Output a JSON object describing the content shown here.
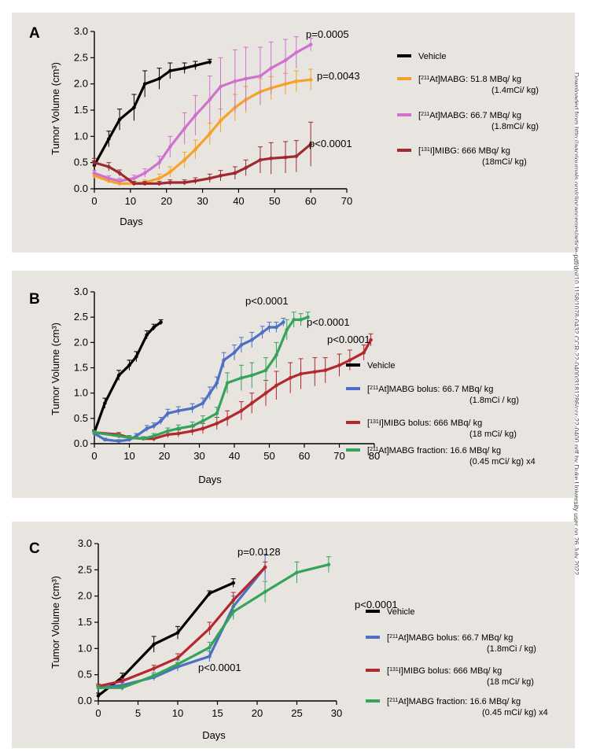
{
  "side_note": "Downloaded from http://aacrjournals.org/clincancerres/article-pdf/doi/10.1158/1078-0432.CCR-22-0400/3181286/ccr-22-0400.pdf by Duke University user on 26 July 2022",
  "colors": {
    "vehicle": "#000000",
    "at_51": "#f5a328",
    "at_66": "#cf72cc",
    "mibg": "#9e2a2f",
    "at_bolus": "#4d6fc4",
    "mibg_bolus": "#b3272d",
    "at_fraction": "#35a35a"
  },
  "chart_data": [
    {
      "panel": "A",
      "type": "line",
      "xlabel": "Days",
      "ylabel": "Tumor Volume (cm³)",
      "xlim": [
        0,
        70
      ],
      "ylim": [
        0,
        3.0
      ],
      "xticks": [
        "0",
        "10",
        "20",
        "30",
        "40",
        "50",
        "60",
        "70"
      ],
      "yticks": [
        "0.0",
        "0.5",
        "1.0",
        "1.5",
        "2.0",
        "2.5",
        "3.0"
      ],
      "series": [
        {
          "name": "Vehicle",
          "color": "#000000",
          "x": [
            0,
            4,
            7,
            11,
            14,
            18,
            21,
            25,
            28,
            32
          ],
          "y": [
            0.45,
            0.95,
            1.32,
            1.55,
            2.0,
            2.1,
            2.25,
            2.3,
            2.35,
            2.42
          ],
          "err": [
            0.08,
            0.15,
            0.2,
            0.25,
            0.25,
            0.2,
            0.15,
            0.1,
            0.08,
            0.05
          ]
        },
        {
          "name": "[²¹¹At]MABG: 51.8 MBq/ kg (1.4mCi/ kg)",
          "color": "#f5a328",
          "x": [
            0,
            4,
            7,
            11,
            14,
            18,
            21,
            25,
            28,
            32,
            35,
            39,
            42,
            46,
            49,
            53,
            56,
            60
          ],
          "y": [
            0.25,
            0.15,
            0.1,
            0.1,
            0.12,
            0.2,
            0.32,
            0.55,
            0.75,
            1.05,
            1.3,
            1.55,
            1.7,
            1.85,
            1.92,
            2.0,
            2.05,
            2.08
          ],
          "err": [
            0.05,
            0.04,
            0.04,
            0.04,
            0.05,
            0.08,
            0.1,
            0.15,
            0.18,
            0.2,
            0.22,
            0.25,
            0.25,
            0.25,
            0.22,
            0.2,
            0.2,
            0.2
          ]
        },
        {
          "name": "[²¹¹At]MABG: 66.7 MBq/ kg (1.8mCi/ kg)",
          "color": "#cf72cc",
          "x": [
            0,
            4,
            7,
            11,
            14,
            18,
            21,
            25,
            28,
            32,
            35,
            39,
            42,
            46,
            49,
            53,
            56,
            60
          ],
          "y": [
            0.3,
            0.2,
            0.15,
            0.2,
            0.3,
            0.5,
            0.8,
            1.15,
            1.4,
            1.7,
            1.95,
            2.05,
            2.1,
            2.15,
            2.3,
            2.45,
            2.6,
            2.75
          ],
          "err": [
            0.05,
            0.05,
            0.05,
            0.06,
            0.08,
            0.12,
            0.2,
            0.3,
            0.38,
            0.45,
            0.55,
            0.6,
            0.6,
            0.55,
            0.5,
            0.4,
            0.3,
            0.12
          ]
        },
        {
          "name": "[¹³¹I]MIBG: 666 MBq/ kg (18mCi/ kg)",
          "color": "#9e2a2f",
          "x": [
            0,
            4,
            7,
            11,
            14,
            18,
            21,
            25,
            28,
            32,
            35,
            39,
            42,
            46,
            49,
            53,
            56,
            60
          ],
          "y": [
            0.5,
            0.42,
            0.3,
            0.1,
            0.1,
            0.1,
            0.12,
            0.12,
            0.15,
            0.2,
            0.25,
            0.3,
            0.4,
            0.55,
            0.58,
            0.6,
            0.62,
            0.85
          ],
          "err": [
            0.08,
            0.08,
            0.06,
            0.04,
            0.04,
            0.04,
            0.05,
            0.05,
            0.06,
            0.08,
            0.1,
            0.12,
            0.15,
            0.25,
            0.3,
            0.3,
            0.3,
            0.42
          ]
        }
      ],
      "annotations": [
        "p=0.0005",
        "p=0.0043",
        "p<0.0001"
      ]
    },
    {
      "panel": "B",
      "type": "line",
      "xlabel": "Days",
      "ylabel": "Tumor Volume (cm³)",
      "xlim": [
        0,
        80
      ],
      "ylim": [
        0,
        3.0
      ],
      "xticks": [
        "0",
        "10",
        "20",
        "30",
        "40",
        "50",
        "60",
        "70",
        "80"
      ],
      "yticks": [
        "0.0",
        "0.5",
        "1.0",
        "1.5",
        "2.0",
        "2.5",
        "3.0"
      ],
      "series": [
        {
          "name": "Vehicle",
          "color": "#000000",
          "x": [
            0,
            3,
            7,
            10,
            12,
            15,
            17,
            19
          ],
          "y": [
            0.22,
            0.8,
            1.35,
            1.55,
            1.72,
            2.15,
            2.3,
            2.4
          ],
          "err": [
            0.05,
            0.1,
            0.1,
            0.1,
            0.1,
            0.08,
            0.06,
            0.05
          ]
        },
        {
          "name": "[²¹¹At]MABG bolus: 66.7 MBq/ kg (1.8mCi / kg)",
          "color": "#4d6fc4",
          "x": [
            0,
            3,
            7,
            10,
            12,
            15,
            17,
            19,
            21,
            24,
            28,
            31,
            33,
            35,
            37,
            40,
            42,
            45,
            48,
            50,
            52,
            54
          ],
          "y": [
            0.2,
            0.08,
            0.05,
            0.08,
            0.15,
            0.3,
            0.35,
            0.45,
            0.6,
            0.65,
            0.7,
            0.8,
            1.0,
            1.2,
            1.65,
            1.8,
            1.95,
            2.05,
            2.2,
            2.3,
            2.3,
            2.4
          ],
          "err": [
            0.04,
            0.03,
            0.03,
            0.04,
            0.05,
            0.06,
            0.06,
            0.07,
            0.08,
            0.08,
            0.09,
            0.1,
            0.12,
            0.12,
            0.15,
            0.15,
            0.15,
            0.15,
            0.12,
            0.1,
            0.1,
            0.08
          ]
        },
        {
          "name": "[¹³¹I]MIBG bolus: 666 MBq/ kg (18 mCi/ kg)",
          "color": "#b3272d",
          "x": [
            0,
            7,
            10,
            14,
            17,
            21,
            24,
            28,
            31,
            35,
            38,
            42,
            45,
            49,
            52,
            56,
            59,
            63,
            66,
            70,
            73,
            77,
            79
          ],
          "y": [
            0.22,
            0.18,
            0.12,
            0.1,
            0.1,
            0.18,
            0.2,
            0.25,
            0.3,
            0.4,
            0.5,
            0.65,
            0.8,
            1.0,
            1.15,
            1.3,
            1.38,
            1.42,
            1.45,
            1.55,
            1.65,
            1.8,
            2.05
          ],
          "err": [
            0.04,
            0.04,
            0.04,
            0.04,
            0.05,
            0.06,
            0.07,
            0.08,
            0.1,
            0.12,
            0.15,
            0.18,
            0.2,
            0.25,
            0.28,
            0.3,
            0.3,
            0.28,
            0.25,
            0.22,
            0.2,
            0.15,
            0.12
          ]
        },
        {
          "name": "[²¹¹At]MABG fraction: 16.6 MBq/ kg (0.45 mCi/ kg) x4",
          "color": "#35a35a",
          "x": [
            0,
            7,
            10,
            14,
            17,
            21,
            24,
            28,
            31,
            35,
            38,
            42,
            45,
            49,
            52,
            55,
            57,
            59,
            61
          ],
          "y": [
            0.22,
            0.15,
            0.12,
            0.1,
            0.15,
            0.25,
            0.3,
            0.35,
            0.45,
            0.6,
            1.2,
            1.3,
            1.35,
            1.45,
            1.75,
            2.25,
            2.45,
            2.45,
            2.5
          ],
          "err": [
            0.04,
            0.04,
            0.04,
            0.04,
            0.05,
            0.06,
            0.07,
            0.08,
            0.1,
            0.12,
            0.2,
            0.25,
            0.25,
            0.25,
            0.25,
            0.2,
            0.15,
            0.12,
            0.1
          ]
        }
      ],
      "annotations": [
        "p<0.0001",
        "p<0.0001",
        "p<0.0001"
      ]
    },
    {
      "panel": "C",
      "type": "line",
      "xlabel": "Days",
      "ylabel": "Tumor Volume (cm³)",
      "xlim": [
        0,
        30
      ],
      "ylim": [
        0,
        3.0
      ],
      "xticks": [
        "0",
        "5",
        "10",
        "15",
        "20",
        "25",
        "30"
      ],
      "yticks": [
        "0.0",
        "0.5",
        "1.0",
        "1.5",
        "2.0",
        "2.5",
        "3.0"
      ],
      "series": [
        {
          "name": "Vehicle",
          "color": "#000000",
          "x": [
            0,
            3,
            7,
            10,
            14,
            17
          ],
          "y": [
            0.1,
            0.45,
            1.08,
            1.3,
            2.05,
            2.25
          ],
          "err": [
            0.05,
            0.08,
            0.15,
            0.12,
            0.05,
            0.08
          ]
        },
        {
          "name": "[²¹¹At]MABG bolus: 66.7 MBq/ kg (1.8mCi / kg)",
          "color": "#4d6fc4",
          "x": [
            0,
            3,
            7,
            10,
            14,
            17,
            21
          ],
          "y": [
            0.25,
            0.3,
            0.45,
            0.65,
            0.85,
            1.8,
            2.55
          ],
          "err": [
            0.04,
            0.05,
            0.06,
            0.08,
            0.1,
            0.2,
            0.25
          ]
        },
        {
          "name": "[¹³¹I]MIBG bolus: 666 MBq/ kg (18 mCi/ kg)",
          "color": "#b3272d",
          "x": [
            0,
            3,
            7,
            10,
            14,
            17,
            21
          ],
          "y": [
            0.28,
            0.38,
            0.62,
            0.82,
            1.38,
            1.92,
            2.55
          ],
          "err": [
            0.04,
            0.05,
            0.06,
            0.08,
            0.12,
            0.15,
            0.1
          ]
        },
        {
          "name": "[²¹¹At]MABG fraction: 16.6 MBq/ kg (0.45 mCi/ kg) x4",
          "color": "#35a35a",
          "x": [
            0,
            3,
            7,
            10,
            14,
            17,
            21,
            25,
            29
          ],
          "y": [
            0.25,
            0.25,
            0.48,
            0.7,
            1.02,
            1.7,
            2.08,
            2.45,
            2.6
          ],
          "err": [
            0.04,
            0.05,
            0.06,
            0.08,
            0.1,
            0.15,
            0.2,
            0.2,
            0.15
          ]
        }
      ],
      "annotations": [
        "p=0.0128",
        "p<0.0001",
        "p<0.0001"
      ]
    }
  ]
}
